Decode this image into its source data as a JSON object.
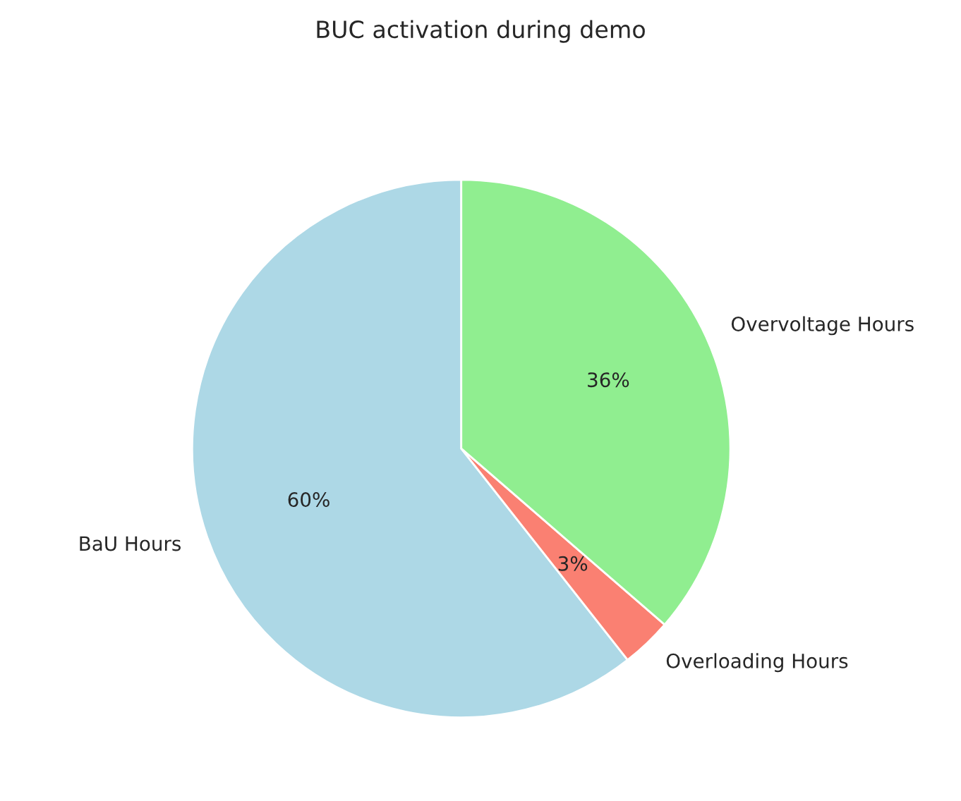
{
  "chart_data": {
    "type": "pie",
    "title": "BUC activation during demo",
    "categories": [
      "BaU Hours",
      "Overloading Hours",
      "Overvoltage Hours"
    ],
    "values": [
      60,
      3,
      36
    ],
    "value_labels": [
      "60%",
      "3%",
      "36%"
    ],
    "colors": [
      "#add8e6",
      "#fa8072",
      "#90ee90"
    ]
  }
}
